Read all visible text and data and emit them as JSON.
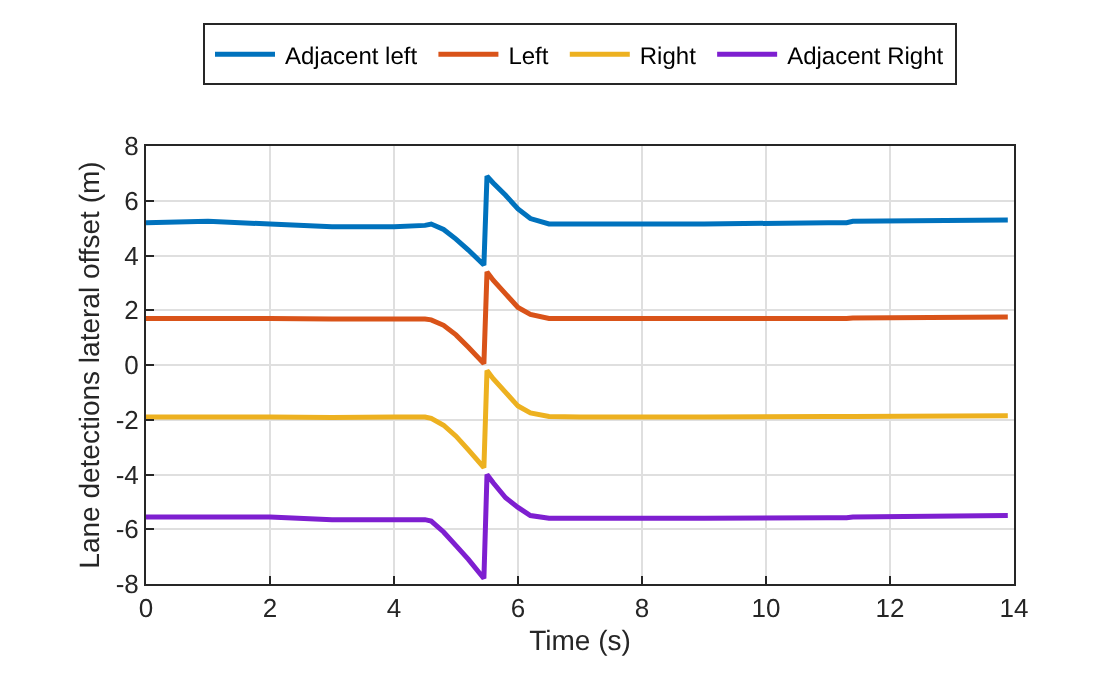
{
  "chart_data": {
    "type": "line",
    "xlabel": "Time (s)",
    "ylabel": "Lane detections lateral offset (m)",
    "x": [
      0,
      1,
      2,
      3,
      4,
      4.5,
      4.6,
      4.8,
      5,
      5.2,
      5.45,
      5.5,
      5.6,
      5.8,
      6,
      6.2,
      6.5,
      7,
      9,
      11,
      11.3,
      11.4,
      13.9
    ],
    "series": [
      {
        "name": "Adjacent left",
        "color": "#0072bd",
        "values": [
          5.2,
          5.25,
          5.15,
          5.05,
          5.05,
          5.1,
          5.15,
          4.95,
          4.6,
          4.2,
          3.65,
          6.9,
          6.65,
          6.2,
          5.7,
          5.35,
          5.15,
          5.15,
          5.15,
          5.2,
          5.2,
          5.25,
          5.3
        ]
      },
      {
        "name": "Left",
        "color": "#d95319",
        "values": [
          1.7,
          1.7,
          1.7,
          1.68,
          1.68,
          1.68,
          1.65,
          1.45,
          1.1,
          0.65,
          0.05,
          3.4,
          3.1,
          2.6,
          2.1,
          1.85,
          1.7,
          1.7,
          1.7,
          1.7,
          1.7,
          1.72,
          1.75
        ]
      },
      {
        "name": "Right",
        "color": "#edb120",
        "values": [
          -1.9,
          -1.9,
          -1.9,
          -1.92,
          -1.9,
          -1.9,
          -1.95,
          -2.2,
          -2.6,
          -3.1,
          -3.75,
          -0.2,
          -0.5,
          -1.0,
          -1.5,
          -1.75,
          -1.88,
          -1.9,
          -1.9,
          -1.88,
          -1.88,
          -1.88,
          -1.85
        ]
      },
      {
        "name": "Adjacent Right",
        "color": "#7e1fd0",
        "values": [
          -5.55,
          -5.55,
          -5.55,
          -5.65,
          -5.65,
          -5.65,
          -5.7,
          -6.1,
          -6.6,
          -7.1,
          -7.8,
          -4.0,
          -4.3,
          -4.85,
          -5.2,
          -5.5,
          -5.6,
          -5.6,
          -5.6,
          -5.58,
          -5.58,
          -5.55,
          -5.5
        ]
      }
    ],
    "xlim": [
      0,
      14
    ],
    "xticks": [
      0,
      2,
      4,
      6,
      8,
      10,
      12,
      14
    ],
    "ylim": [
      -8,
      8
    ],
    "yticks": [
      -8,
      -6,
      -4,
      -2,
      0,
      2,
      4,
      6,
      8
    ],
    "grid": true,
    "legend": "top",
    "marker": "none",
    "line_style": "solid"
  }
}
